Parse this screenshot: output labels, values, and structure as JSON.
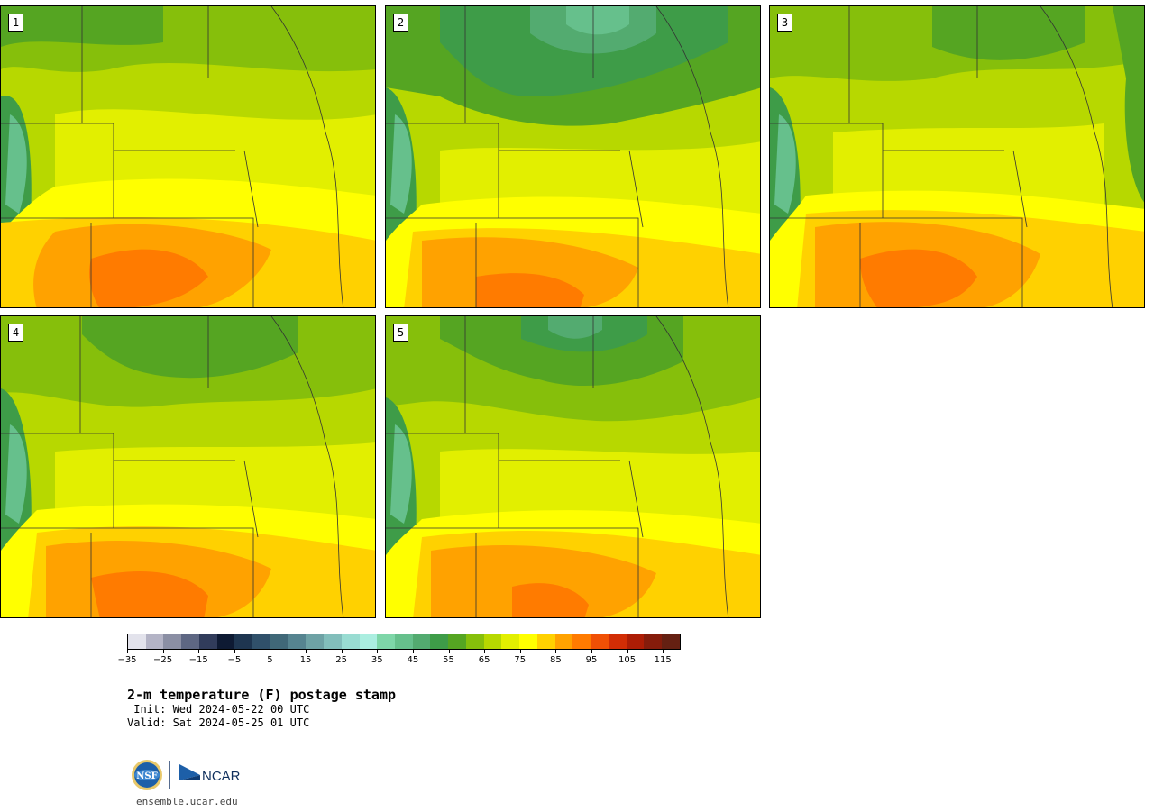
{
  "panels": [
    {
      "label": "1"
    },
    {
      "label": "2"
    },
    {
      "label": "3"
    },
    {
      "label": "4"
    },
    {
      "label": "5"
    }
  ],
  "colorbar": {
    "colors": [
      "#e3e3ec",
      "#b4b4c6",
      "#8b8fa4",
      "#5e6783",
      "#313c5b",
      "#0e1a33",
      "#1e3550",
      "#30506a",
      "#406878",
      "#568490",
      "#6ea2a5",
      "#82bebb",
      "#99dcd2",
      "#abeee0",
      "#7ed6a8",
      "#66c08c",
      "#53ab70",
      "#3e9c48",
      "#55a522",
      "#86bf0b",
      "#b7d800",
      "#e2ef00",
      "#ffff00",
      "#ffd100",
      "#ffa200",
      "#ff7b00",
      "#f05005",
      "#d22d05",
      "#ad1d05",
      "#851c0b",
      "#652012"
    ],
    "tick_labels": [
      "−35",
      "−25",
      "−15",
      "−5",
      "5",
      "15",
      "25",
      "35",
      "45",
      "55",
      "65",
      "75",
      "85",
      "95",
      "105",
      "115"
    ]
  },
  "title": "2-m temperature (F) postage stamp",
  "init": " Init: Wed 2024-05-22 00 UTC",
  "valid": "Valid: Sat 2024-05-25 01 UTC",
  "logo": {
    "left_text": "NSF",
    "right_text": "NCAR"
  },
  "website": "ensemble.ucar.edu"
}
